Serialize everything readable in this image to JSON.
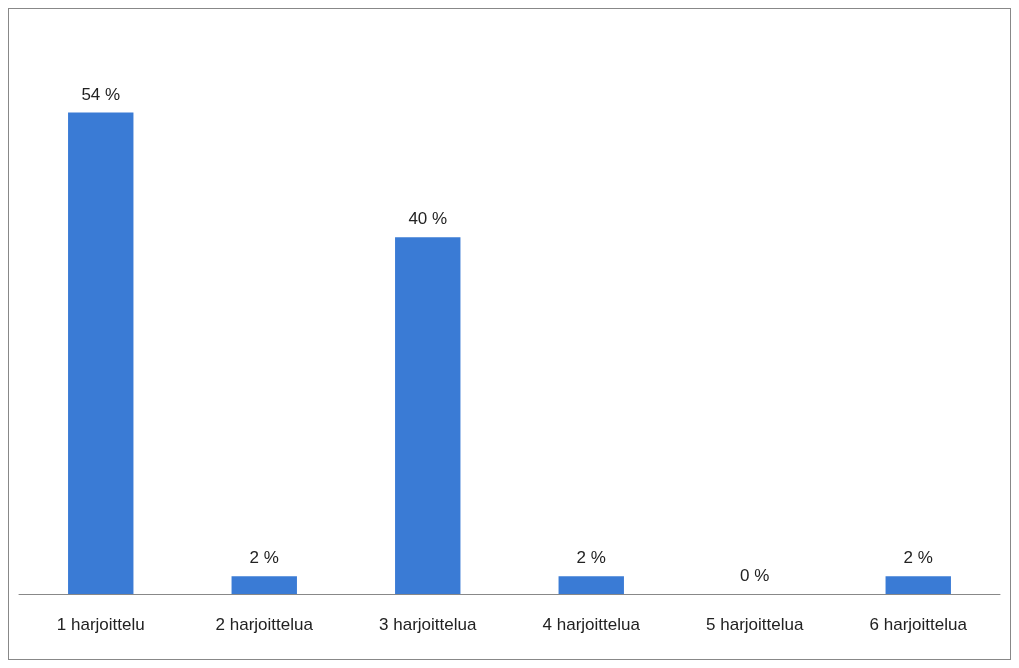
{
  "chart_data": {
    "type": "bar",
    "categories": [
      "1 harjoittelu",
      "2 harjoittelua",
      "3 harjoittelua",
      "4 harjoittelua",
      "5 harjoittelua",
      "6 harjoittelua"
    ],
    "values": [
      54,
      2,
      40,
      2,
      0,
      2
    ],
    "value_labels": [
      "54 %",
      "2 %",
      "40 %",
      "2 %",
      "0 %",
      "2 %"
    ],
    "color": "#3a7bd5"
  }
}
